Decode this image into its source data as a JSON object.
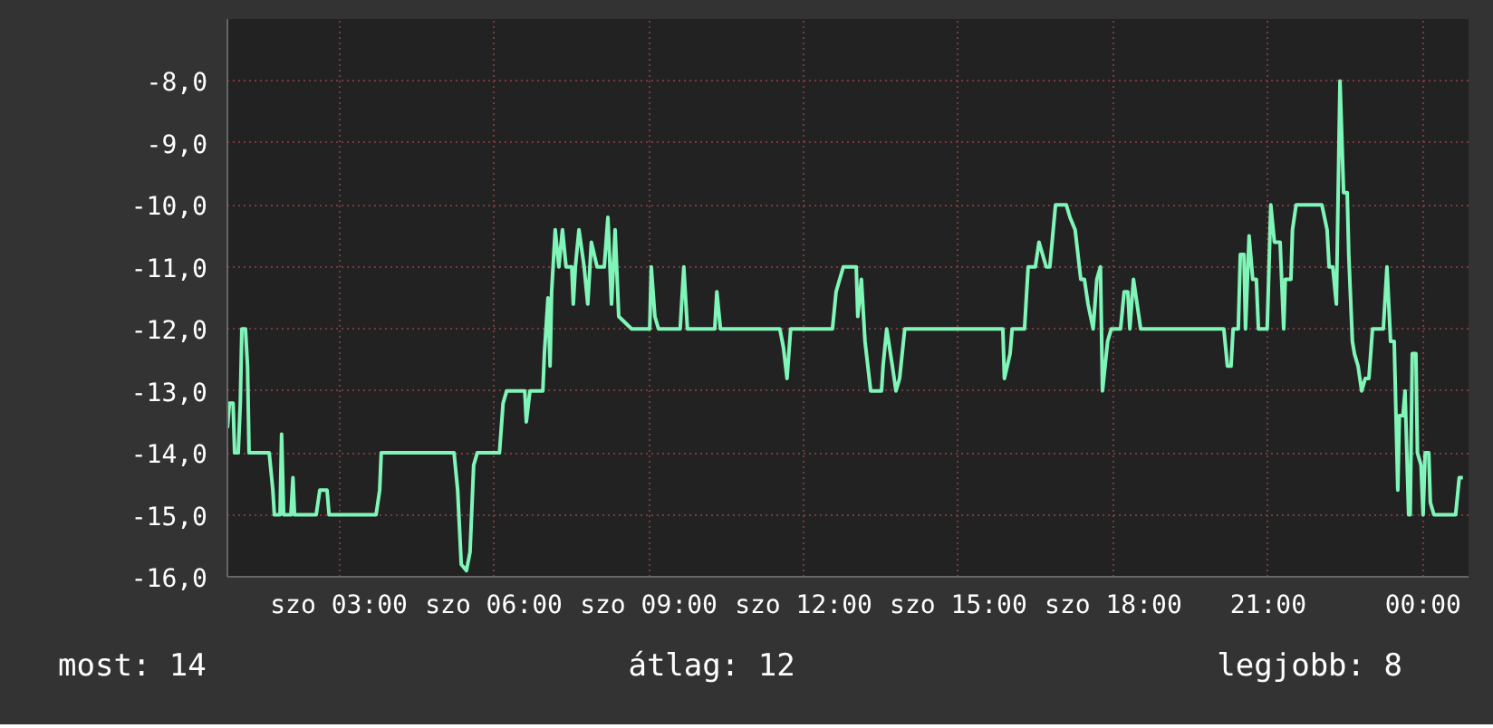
{
  "chart_data": {
    "type": "line",
    "xlim": [
      0.84,
      24.88
    ],
    "ylim": [
      -16,
      -7.0
    ],
    "xticks": [
      {
        "value": 3,
        "label": "szo 03:00"
      },
      {
        "value": 6,
        "label": "szo 06:00"
      },
      {
        "value": 9,
        "label": "szo 09:00"
      },
      {
        "value": 12,
        "label": "szo 12:00"
      },
      {
        "value": 15,
        "label": "szo 15:00"
      },
      {
        "value": 18,
        "label": "szo 18:00"
      },
      {
        "value": 21,
        "label": "21:00"
      },
      {
        "value": 24,
        "label": "00:00"
      }
    ],
    "yticks": [
      {
        "value": -16,
        "label": "-16,0"
      },
      {
        "value": -15,
        "label": "-15,0"
      },
      {
        "value": -14,
        "label": "-14,0"
      },
      {
        "value": -13,
        "label": "-13,0"
      },
      {
        "value": -12,
        "label": "-12,0"
      },
      {
        "value": -11,
        "label": "-11,0"
      },
      {
        "value": -10,
        "label": "-10,0"
      },
      {
        "value": -9,
        "label": "-9,0"
      },
      {
        "value": -8,
        "label": "-8,0"
      }
    ],
    "grid": true,
    "line_style": "solid",
    "annotations": [
      "most: 14",
      "átlag: 12",
      "legjobb: 8"
    ],
    "series": [
      {
        "color": "#80f5b8",
        "x": [
          0.84,
          0.88,
          0.95,
          0.98,
          1.05,
          1.09,
          1.12,
          1.19,
          1.23,
          1.26,
          1.65,
          1.72,
          1.75,
          1.86,
          1.89,
          1.93,
          2.07,
          2.11,
          2.14,
          2.56,
          2.63,
          2.77,
          2.81,
          3.72,
          3.79,
          3.82,
          5.23,
          5.3,
          5.37,
          5.47,
          5.54,
          5.61,
          5.68,
          6.11,
          6.18,
          6.25,
          6.6,
          6.63,
          6.7,
          6.95,
          6.98,
          7.05,
          7.09,
          7.12,
          7.19,
          7.26,
          7.33,
          7.4,
          7.51,
          7.54,
          7.58,
          7.65,
          7.75,
          7.82,
          7.89,
          8.0,
          8.14,
          8.21,
          8.28,
          8.35,
          8.42,
          8.67,
          9.02,
          9.05,
          9.12,
          9.19,
          9.61,
          9.68,
          9.75,
          10.28,
          10.32,
          10.39,
          11.54,
          11.61,
          11.68,
          11.75,
          12.56,
          12.63,
          12.77,
          13.02,
          13.05,
          13.12,
          13.19,
          13.3,
          13.51,
          13.54,
          13.61,
          13.72,
          13.79,
          13.86,
          13.96,
          15.86,
          15.89,
          16.0,
          16.04,
          16.28,
          16.35,
          16.49,
          16.56,
          16.7,
          16.77,
          16.88,
          17.09,
          17.16,
          17.26,
          17.37,
          17.44,
          17.51,
          17.61,
          17.68,
          17.75,
          17.79,
          17.89,
          17.96,
          18.14,
          18.21,
          18.28,
          18.32,
          18.39,
          18.46,
          18.53,
          20.14,
          20.21,
          20.28,
          20.32,
          20.42,
          20.46,
          20.53,
          20.56,
          20.63,
          20.7,
          20.77,
          20.81,
          20.98,
          21.05,
          21.12,
          21.23,
          21.3,
          21.33,
          21.44,
          21.47,
          21.54,
          22.04,
          22.14,
          22.18,
          22.25,
          22.32,
          22.39,
          22.46,
          22.53,
          22.56,
          22.63,
          22.67,
          22.74,
          22.81,
          22.88,
          22.95,
          23.02,
          23.23,
          23.3,
          23.37,
          23.44,
          23.51,
          23.54,
          23.61,
          23.65,
          23.72,
          23.75,
          23.79,
          23.86,
          23.89,
          23.96,
          24.0,
          24.04,
          24.11,
          24.14,
          24.21,
          24.63,
          24.7,
          24.77
        ],
        "values": [
          -13.6,
          -13.2,
          -13.2,
          -14.0,
          -14.0,
          -13.2,
          -12.0,
          -12.0,
          -12.6,
          -14.0,
          -14.0,
          -14.6,
          -15.0,
          -15.0,
          -13.7,
          -15.0,
          -15.0,
          -14.4,
          -15.0,
          -15.0,
          -14.6,
          -14.6,
          -15.0,
          -15.0,
          -14.6,
          -14.0,
          -14.0,
          -14.6,
          -15.8,
          -15.9,
          -15.6,
          -14.2,
          -14.0,
          -14.0,
          -13.2,
          -13.0,
          -13.0,
          -13.5,
          -13.0,
          -13.0,
          -12.4,
          -11.5,
          -12.6,
          -11.4,
          -10.4,
          -11.0,
          -10.4,
          -11.0,
          -11.0,
          -11.6,
          -11.0,
          -10.4,
          -11.0,
          -11.6,
          -10.6,
          -11.0,
          -11.0,
          -10.2,
          -11.6,
          -10.4,
          -11.8,
          -12.0,
          -12.0,
          -11.0,
          -11.8,
          -12.0,
          -12.0,
          -11.0,
          -12.0,
          -12.0,
          -11.4,
          -12.0,
          -12.0,
          -12.3,
          -12.8,
          -12.0,
          -12.0,
          -11.4,
          -11.0,
          -11.0,
          -11.8,
          -11.2,
          -12.2,
          -13.0,
          -13.0,
          -12.6,
          -12.0,
          -12.6,
          -13.0,
          -12.8,
          -12.0,
          -12.0,
          -12.8,
          -12.4,
          -12.0,
          -12.0,
          -11.0,
          -11.0,
          -10.6,
          -11.0,
          -11.0,
          -10.0,
          -10.0,
          -10.2,
          -10.4,
          -11.2,
          -11.2,
          -11.6,
          -12.0,
          -11.2,
          -11.0,
          -13.0,
          -12.2,
          -12.0,
          -12.0,
          -11.4,
          -11.4,
          -12.0,
          -11.2,
          -11.6,
          -12.0,
          -12.0,
          -12.6,
          -12.6,
          -12.0,
          -12.0,
          -10.8,
          -10.8,
          -12.0,
          -10.5,
          -11.2,
          -11.2,
          -12.0,
          -12.0,
          -10.0,
          -10.6,
          -10.6,
          -12.0,
          -11.2,
          -11.2,
          -10.4,
          -10.0,
          -10.0,
          -10.4,
          -11.0,
          -11.0,
          -11.6,
          -8.0,
          -9.8,
          -9.8,
          -10.8,
          -12.2,
          -12.4,
          -12.6,
          -13.0,
          -12.8,
          -12.8,
          -12.0,
          -12.0,
          -11.0,
          -12.2,
          -12.2,
          -14.6,
          -13.4,
          -13.4,
          -13.0,
          -15.0,
          -15.0,
          -12.4,
          -12.4,
          -14.0,
          -14.2,
          -15.0,
          -14.0,
          -14.0,
          -14.8,
          -15.0,
          -15.0,
          -14.4,
          -14.4
        ]
      }
    ]
  }
}
